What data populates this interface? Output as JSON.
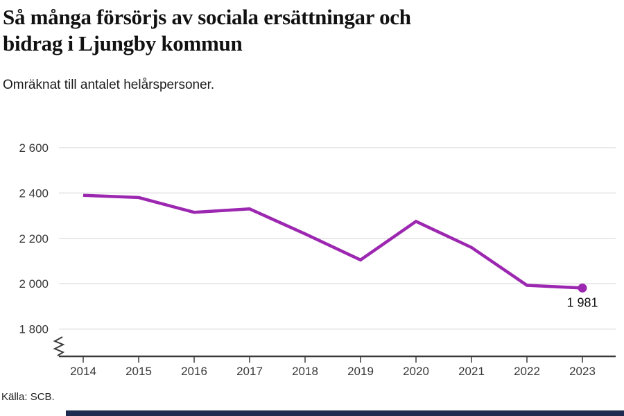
{
  "header": {
    "title": "Så många försörjs av sociala ersättningar och bidrag i Ljungby kommun",
    "title_lines": [
      "Så många försörjs av sociala ersättningar och",
      "bidrag i Ljungby kommun"
    ],
    "subtitle": "Omräknat till antalet helårspersoner."
  },
  "footer": {
    "source": "Källa: SCB."
  },
  "colors": {
    "line": "#9c27b0",
    "axis": "#3a3a3a",
    "grid": "#e2e2e2",
    "tick_label": "#3a3a3a",
    "annotation": "#111111",
    "bottom_bar": "#1e2a4f"
  },
  "chart_data": {
    "type": "line",
    "title": "Så många försörjs av sociala ersättningar och bidrag i Ljungby kommun",
    "subtitle": "Omräknat till antalet helårspersoner.",
    "source": "Källa: SCB.",
    "x": [
      2014,
      2015,
      2016,
      2017,
      2018,
      2019,
      2020,
      2021,
      2022,
      2023
    ],
    "values": [
      2390,
      2380,
      2315,
      2330,
      2220,
      2105,
      2275,
      2160,
      1993,
      1981
    ],
    "last_value": 1981,
    "last_value_label": "1 981",
    "y_ticks": [
      2600,
      2400,
      2200,
      2000,
      1800
    ],
    "y_tick_labels": [
      "2 600",
      "2 400",
      "2 200",
      "2 000",
      "1 800"
    ],
    "ylim": [
      1750,
      2660
    ],
    "axis_break_at_zero": true,
    "grid": true,
    "legend": "none",
    "line_color": "#9c27b0"
  }
}
